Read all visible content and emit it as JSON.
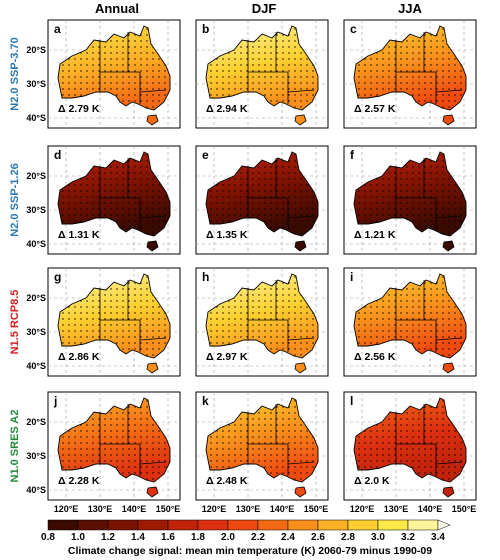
{
  "column_titles": [
    "Annual",
    "DJF",
    "JJA"
  ],
  "rows": [
    {
      "label": "N2.0 SSP-3.70",
      "color": "#2a7ab0"
    },
    {
      "label": "N2.0 SSP-1.26",
      "color": "#2a7ab0"
    },
    {
      "label": "N1.5 RCP8.5",
      "color": "#d62020"
    },
    {
      "label": "N1.0 SRES A2",
      "color": "#1f8a3a"
    }
  ],
  "panels": [
    {
      "letter": "a",
      "delta": "Δ 2.79 K",
      "value": 2.79
    },
    {
      "letter": "b",
      "delta": "Δ 2.94 K",
      "value": 2.94
    },
    {
      "letter": "c",
      "delta": "Δ 2.57 K",
      "value": 2.57
    },
    {
      "letter": "d",
      "delta": "Δ 1.31 K",
      "value": 1.31
    },
    {
      "letter": "e",
      "delta": "Δ 1.35 K",
      "value": 1.35
    },
    {
      "letter": "f",
      "delta": "Δ 1.21 K",
      "value": 1.21
    },
    {
      "letter": "g",
      "delta": "Δ 2.86 K",
      "value": 2.86
    },
    {
      "letter": "h",
      "delta": "Δ 2.97 K",
      "value": 2.97
    },
    {
      "letter": "i",
      "delta": "Δ 2.56 K",
      "value": 2.56
    },
    {
      "letter": "j",
      "delta": "Δ 2.28 K",
      "value": 2.28
    },
    {
      "letter": "k",
      "delta": "Δ 2.48 K",
      "value": 2.48
    },
    {
      "letter": "l",
      "delta": "Δ 2.0 K",
      "value": 2.0
    }
  ],
  "lat_ticks": [
    "20°S",
    "30°S",
    "40°S"
  ],
  "lon_ticks": [
    "120°E",
    "130°E",
    "140°E",
    "150°E"
  ],
  "colorbar": {
    "ticks": [
      "0.8",
      "1.0",
      "1.2",
      "1.4",
      "1.6",
      "1.8",
      "2.0",
      "2.2",
      "2.4",
      "2.6",
      "2.8",
      "3.0",
      "3.2",
      "3.4"
    ],
    "colors": [
      "#3a0a00",
      "#5a0f00",
      "#7a1200",
      "#9e1a00",
      "#c0220a",
      "#dd3010",
      "#ee4a10",
      "#f46a14",
      "#f88e1c",
      "#fbb026",
      "#fdd030",
      "#fde84a",
      "#fef59a"
    ],
    "end_color": "#fffce8",
    "title": "Climate change signal: mean min temperature (K) 2060-79 minus 1990-09"
  }
}
